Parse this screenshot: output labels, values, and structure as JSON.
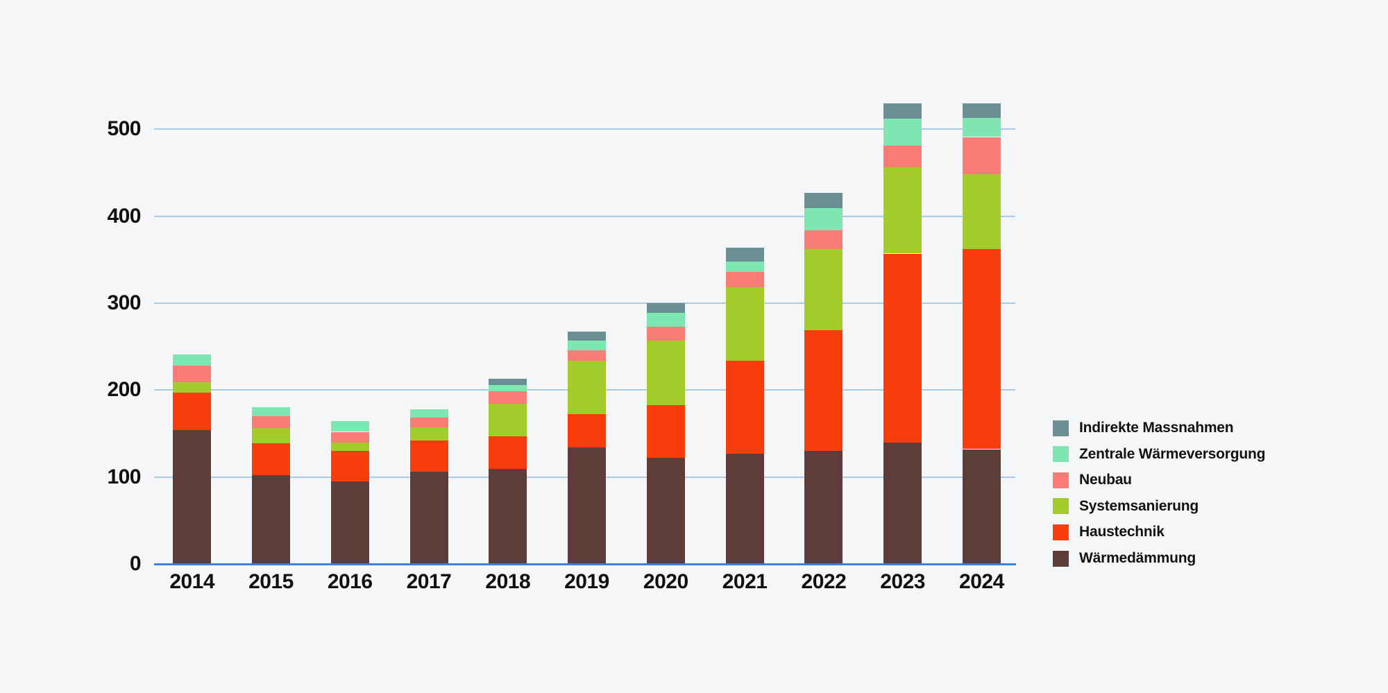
{
  "chart_data": {
    "type": "bar",
    "stacked": true,
    "title": "",
    "xlabel": "",
    "ylabel": "",
    "categories": [
      "2014",
      "2015",
      "2016",
      "2017",
      "2018",
      "2019",
      "2020",
      "2021",
      "2022",
      "2023",
      "2024"
    ],
    "series": [
      {
        "name": "Wärmedämmung",
        "color": "#5d3c3a",
        "values": [
          154,
          102,
          95,
          106,
          109,
          134,
          122,
          127,
          130,
          140,
          132
        ]
      },
      {
        "name": "Haustechnik",
        "color": "#f93d0c",
        "values": [
          43,
          37,
          35,
          36,
          38,
          38,
          61,
          107,
          139,
          217,
          230
        ]
      },
      {
        "name": "Systemsanierung",
        "color": "#a3cb29",
        "values": [
          12,
          17,
          10,
          15,
          37,
          62,
          74,
          84,
          93,
          99,
          86
        ]
      },
      {
        "name": "Neubau",
        "color": "#f97d77",
        "values": [
          19,
          14,
          12,
          11,
          15,
          12,
          16,
          18,
          22,
          25,
          43
        ]
      },
      {
        "name": "Zentrale Wärmeversorgung",
        "color": "#7ee6b1",
        "values": [
          13,
          10,
          12,
          10,
          7,
          11,
          16,
          12,
          25,
          31,
          22
        ]
      },
      {
        "name": "Indirekte Massnahmen",
        "color": "#6b8e95",
        "values": [
          0,
          0,
          0,
          0,
          7,
          10,
          11,
          16,
          18,
          18,
          17
        ]
      }
    ],
    "totals": [
      241,
      180,
      164,
      178,
      213,
      267,
      300,
      364,
      427,
      530,
      530
    ],
    "y_ticks": [
      "0",
      "100",
      "200",
      "300",
      "400",
      "500"
    ],
    "ylim": [
      0,
      550
    ],
    "grid": "horizontal",
    "legend_position": "right",
    "legend_order": [
      "Indirekte Massnahmen",
      "Zentrale Wärmeversorgung",
      "Neubau",
      "Systemsanierung",
      "Haustechnik",
      "Wärmedämmung"
    ]
  },
  "colors": {
    "background": "#f4f6f8",
    "gridline": "#a7cbe9",
    "baseline": "#3b7fe3",
    "text": "#101010"
  }
}
